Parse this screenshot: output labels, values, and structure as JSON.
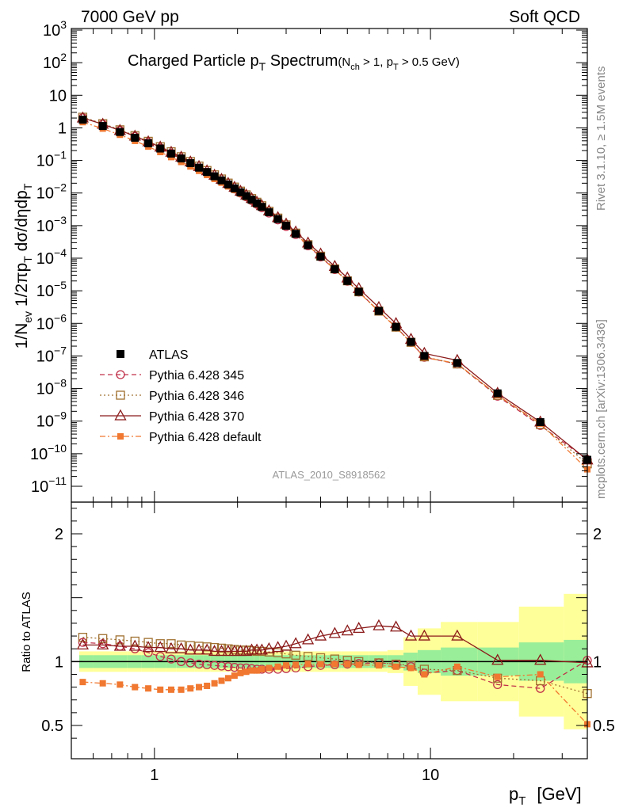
{
  "header": {
    "left": "7000 GeV pp",
    "right": "Soft QCD"
  },
  "side": {
    "rivet": "Rivet 3.1.10, ≥ 1.5M events",
    "mcplots": "mcplots.cern.ch [arXiv:1306.3436]"
  },
  "title": {
    "main": "Charged Particle p",
    "main_sub": "T",
    "main_tail": " Spectrum",
    "cond_a": "(N",
    "cond_a_sub": "ch",
    "cond_b": " > 1, p",
    "cond_b_sub": "T",
    "cond_c": " > 0.5 GeV)"
  },
  "analysis_tag": "ATLAS_2010_S8918562",
  "ylabel": {
    "p1": "1/N",
    "p1_sub": "ev",
    "p2": " 1/2πp",
    "p2_sub": "T",
    "p3": " dσ/dηdp",
    "p3_sub": "T"
  },
  "ratio_ylabel": "Ratio to ATLAS",
  "xlabel": {
    "p": "p",
    "p_sub": "T",
    "unit": "[GeV]"
  },
  "upper_ticks": [
    {
      "exp": 3,
      "label": "10",
      "sup": "3"
    },
    {
      "exp": 2,
      "label": "10",
      "sup": "2"
    },
    {
      "exp": 1,
      "label": "10",
      "sup": ""
    },
    {
      "exp": 0,
      "label": "1",
      "sup": ""
    },
    {
      "exp": -1,
      "label": "10",
      "sup": "−1"
    },
    {
      "exp": -2,
      "label": "10",
      "sup": "−2"
    },
    {
      "exp": -3,
      "label": "10",
      "sup": "−3"
    },
    {
      "exp": -4,
      "label": "10",
      "sup": "−4"
    },
    {
      "exp": -5,
      "label": "10",
      "sup": "−5"
    },
    {
      "exp": -6,
      "label": "10",
      "sup": "−6"
    },
    {
      "exp": -7,
      "label": "10",
      "sup": "−7"
    },
    {
      "exp": -8,
      "label": "10",
      "sup": "−8"
    },
    {
      "exp": -9,
      "label": "10",
      "sup": "−9"
    },
    {
      "exp": -10,
      "label": "10",
      "sup": "−10"
    },
    {
      "exp": -11,
      "label": "10",
      "sup": "−11"
    }
  ],
  "ratio_ticks": [
    {
      "value": 2,
      "label": "2"
    },
    {
      "value": 1,
      "label": "1"
    },
    {
      "value": 0.5,
      "label": "0.5"
    }
  ],
  "x_ticks": [
    {
      "value": 1,
      "label": "1"
    },
    {
      "value": 10,
      "label": "10"
    }
  ],
  "legend": [
    {
      "label": "ATLAS",
      "color": "#000000",
      "marker": "filled-square",
      "dash": "none"
    },
    {
      "label": "Pythia 6.428 345",
      "color": "#c0304a",
      "marker": "open-circle",
      "dash": "dashed"
    },
    {
      "label": "Pythia 6.428 346",
      "color": "#a07030",
      "marker": "open-square",
      "dash": "dotted"
    },
    {
      "label": "Pythia 6.428 370",
      "color": "#8b1a1a",
      "marker": "open-triangle",
      "dash": "solid"
    },
    {
      "label": "Pythia 6.428 default",
      "color": "#f07830",
      "marker": "filled-square-small",
      "dash": "dashdot"
    }
  ],
  "chart_data": {
    "type": "scatter",
    "title": "Charged Particle pT Spectrum (Nch > 1, pT > 0.5 GeV)",
    "xlabel": "pT [GeV]",
    "ylabel": "1/Nev 1/2πpT dσ/dηdpT",
    "xscale": "log",
    "yscale": "log",
    "xlim": [
      0.5,
      37
    ],
    "ylim": [
      1e-11,
      1000
    ],
    "ratio_ylim": [
      0.35,
      2.35
    ],
    "grid": false,
    "legend_position": "bottom-left",
    "x": [
      0.55,
      0.65,
      0.75,
      0.85,
      0.95,
      1.05,
      1.15,
      1.25,
      1.35,
      1.45,
      1.55,
      1.65,
      1.75,
      1.85,
      1.95,
      2.05,
      2.15,
      2.25,
      2.35,
      2.45,
      2.6,
      2.8,
      3.0,
      3.25,
      3.6,
      4.0,
      4.5,
      5.0,
      5.5,
      6.5,
      7.5,
      8.5,
      9.5,
      12.5,
      17.5,
      25.0,
      37.0
    ],
    "series": [
      {
        "name": "ATLAS",
        "values": [
          1.78,
          1.14,
          0.745,
          0.497,
          0.336,
          0.232,
          0.162,
          0.115,
          0.0825,
          0.0599,
          0.0441,
          0.0326,
          0.0244,
          0.0183,
          0.0139,
          0.0105,
          0.00807,
          0.00623,
          0.00483,
          0.00376,
          0.00258,
          0.00159,
          0.000995,
          0.00056,
          0.00025,
          0.000112,
          4.6e-05,
          2e-05,
          9.3e-06,
          2.4e-06,
          7.8e-07,
          2.7e-07,
          1e-07,
          6.1e-08,
          7.1e-09,
          9.3e-10,
          6.5e-11
        ]
      },
      {
        "name": "Pythia 6.428 345",
        "ratio": [
          1.15,
          1.14,
          1.12,
          1.1,
          1.07,
          1.04,
          1.02,
          1.0,
          0.99,
          0.98,
          0.975,
          0.97,
          0.965,
          0.96,
          0.955,
          0.95,
          0.95,
          0.945,
          0.94,
          0.94,
          0.94,
          0.94,
          0.945,
          0.95,
          0.96,
          0.97,
          0.975,
          0.98,
          0.985,
          0.99,
          0.98,
          0.96,
          0.91,
          0.93,
          0.82,
          0.79,
          1.01
        ]
      },
      {
        "name": "Pythia 6.428 346",
        "ratio": [
          1.19,
          1.18,
          1.17,
          1.16,
          1.15,
          1.14,
          1.14,
          1.13,
          1.125,
          1.12,
          1.115,
          1.11,
          1.105,
          1.1,
          1.095,
          1.09,
          1.09,
          1.085,
          1.08,
          1.08,
          1.075,
          1.07,
          1.06,
          1.05,
          1.04,
          1.03,
          1.02,
          1.01,
          1.0,
          0.99,
          0.98,
          0.97,
          0.94,
          0.93,
          0.87,
          0.85,
          0.75
        ]
      },
      {
        "name": "Pythia 6.428 370",
        "ratio": [
          1.13,
          1.13,
          1.12,
          1.12,
          1.11,
          1.11,
          1.1,
          1.1,
          1.09,
          1.09,
          1.09,
          1.08,
          1.08,
          1.08,
          1.08,
          1.08,
          1.08,
          1.09,
          1.09,
          1.09,
          1.1,
          1.11,
          1.12,
          1.14,
          1.17,
          1.2,
          1.22,
          1.24,
          1.26,
          1.28,
          1.27,
          1.2,
          1.2,
          1.2,
          1.01,
          1.01,
          0.99
        ]
      },
      {
        "name": "Pythia 6.428 default",
        "ratio": [
          0.84,
          0.83,
          0.82,
          0.8,
          0.79,
          0.78,
          0.78,
          0.78,
          0.79,
          0.8,
          0.81,
          0.83,
          0.85,
          0.87,
          0.89,
          0.91,
          0.92,
          0.93,
          0.93,
          0.94,
          0.95,
          0.96,
          0.97,
          0.975,
          0.98,
          0.98,
          0.98,
          0.98,
          0.975,
          0.97,
          0.96,
          0.95,
          0.9,
          0.96,
          0.88,
          0.9,
          0.51
        ]
      }
    ],
    "uncertainty_bands": {
      "stat_green": [
        0.05,
        0.05,
        0.05,
        0.05,
        0.05,
        0.05,
        0.05,
        0.05,
        0.05,
        0.05,
        0.05,
        0.05,
        0.05,
        0.05,
        0.05,
        0.05,
        0.05,
        0.05,
        0.05,
        0.05,
        0.05,
        0.05,
        0.05,
        0.05,
        0.05,
        0.05,
        0.05,
        0.05,
        0.05,
        0.05,
        0.05,
        0.07,
        0.09,
        0.11,
        0.11,
        0.15,
        0.17
      ],
      "syst_yellow": [
        0.03,
        0.03,
        0.03,
        0.03,
        0.03,
        0.03,
        0.03,
        0.03,
        0.03,
        0.03,
        0.03,
        0.03,
        0.03,
        0.03,
        0.03,
        0.03,
        0.03,
        0.03,
        0.03,
        0.03,
        0.03,
        0.03,
        0.03,
        0.03,
        0.03,
        0.03,
        0.03,
        0.03,
        0.03,
        0.03,
        0.04,
        0.12,
        0.17,
        0.2,
        0.2,
        0.28,
        0.36
      ]
    }
  }
}
